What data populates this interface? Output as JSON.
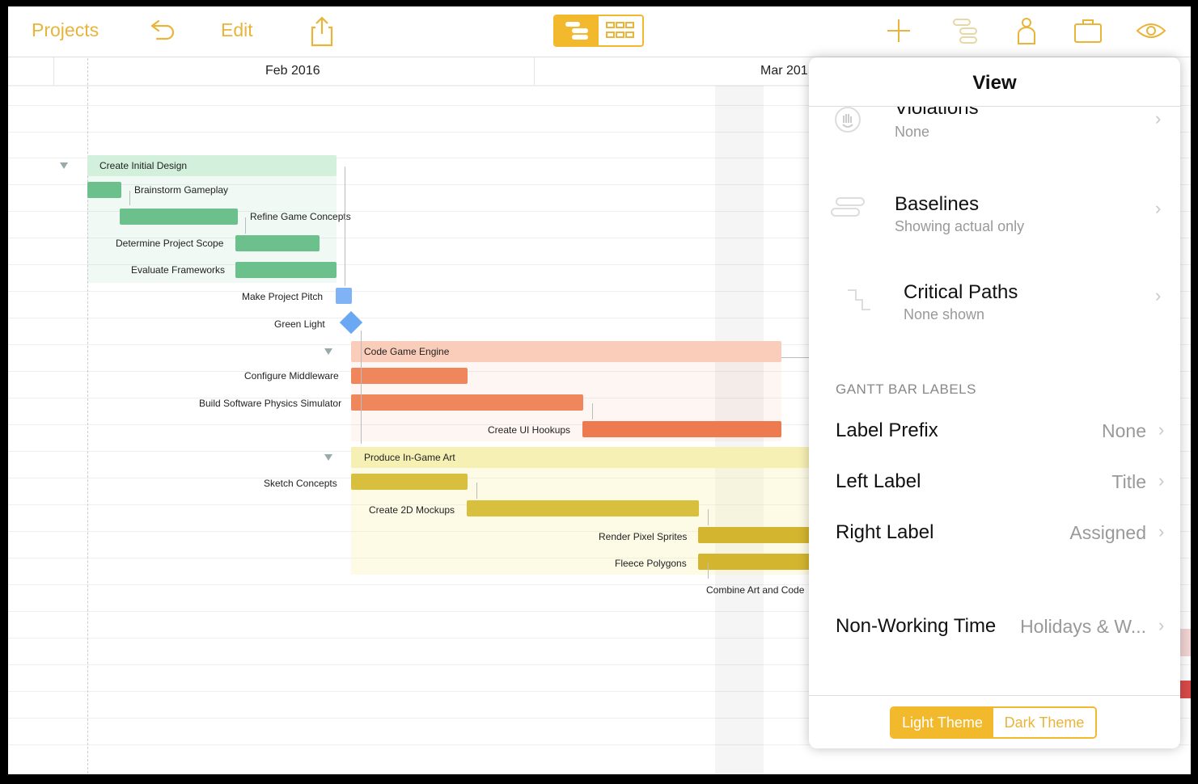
{
  "toolbar": {
    "projects_label": "Projects",
    "edit_label": "Edit",
    "icons": [
      "undo-icon",
      "share-icon",
      "gantt-view-icon",
      "grid-view-icon",
      "add-icon",
      "outline-icon",
      "person-icon",
      "briefcase-icon",
      "eye-icon"
    ]
  },
  "timeline": {
    "months": [
      "Feb 2016",
      "Mar 201"
    ]
  },
  "gantt": {
    "tasks": [
      {
        "label": "Create Initial Design"
      },
      {
        "label": "Brainstorm Gameplay"
      },
      {
        "label": "Refine Game Concepts"
      },
      {
        "label": "Determine Project Scope"
      },
      {
        "label": "Evaluate Frameworks"
      },
      {
        "label": "Make Project Pitch"
      },
      {
        "label": "Green Light"
      },
      {
        "label": "Code Game Engine"
      },
      {
        "label": "Configure Middleware"
      },
      {
        "label": "Build Software Physics Simulator"
      },
      {
        "label": "Create UI Hookups"
      },
      {
        "label": "Produce In-Game Art"
      },
      {
        "label": "Sketch Concepts"
      },
      {
        "label": "Create 2D Mockups"
      },
      {
        "label": "Render Pixel Sprites"
      },
      {
        "label": "Fleece Polygons"
      },
      {
        "label": "Combine Art and Code"
      }
    ],
    "colors": {
      "design": "#6cc08b",
      "design_bg": "#d9f2e2",
      "pitch": "#7fb3f5",
      "engine": "#f0875c",
      "engine_bg": "#f9cdb9",
      "art": "#d9bf3e",
      "art_bg": "#f9f2b8"
    }
  },
  "popover": {
    "title": "View",
    "rows": [
      {
        "title": "Violations",
        "sub": "None"
      },
      {
        "title": "Baselines",
        "sub": "Showing actual only"
      },
      {
        "title": "Critical Paths",
        "sub": "None shown"
      }
    ],
    "section_label": "GANTT BAR LABELS",
    "label_rows": [
      {
        "title": "Label Prefix",
        "value": "None"
      },
      {
        "title": "Left Label",
        "value": "Title"
      },
      {
        "title": "Right Label",
        "value": "Assigned"
      }
    ],
    "nonworking": {
      "title": "Non-Working Time",
      "value": "Holidays & W..."
    },
    "themes": {
      "light": "Light Theme",
      "dark": "Dark Theme"
    }
  }
}
